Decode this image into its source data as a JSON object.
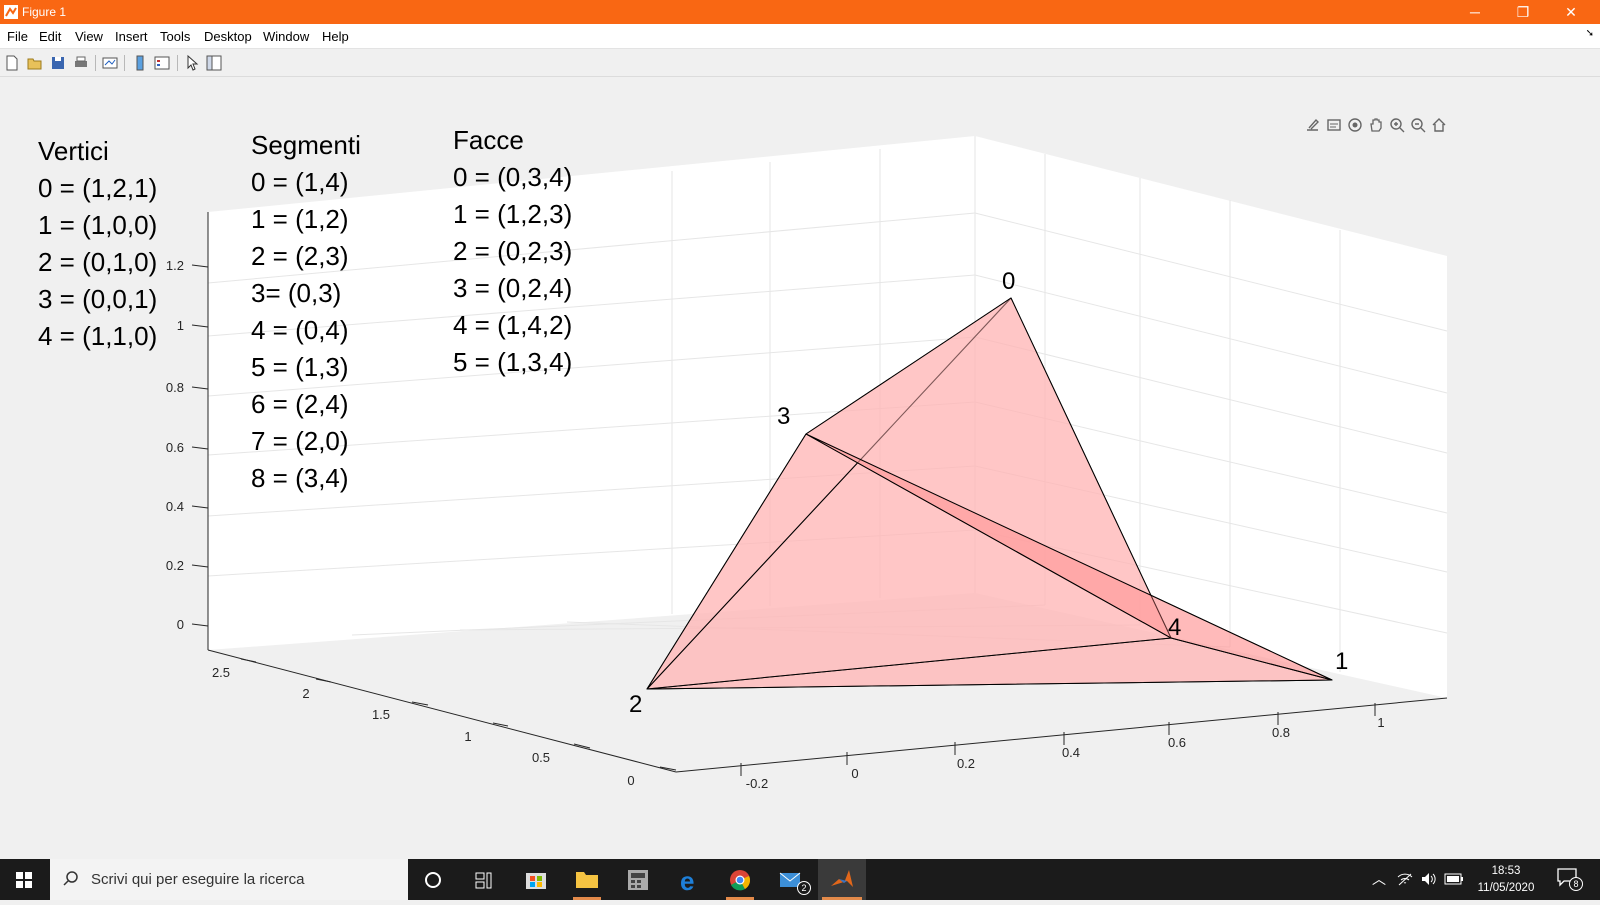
{
  "window": {
    "title": "Figure 1",
    "controls": {
      "minimize": "─",
      "maximize": "❐",
      "close": "✕"
    }
  },
  "menu": [
    "File",
    "Edit",
    "View",
    "Insert",
    "Tools",
    "Desktop",
    "Window",
    "Help"
  ],
  "toolbar_icons": [
    "new-figure-icon",
    "open-file-icon",
    "save-icon",
    "print-icon",
    "link-plot-icon",
    "colorbar-icon",
    "legend-icon",
    "edit-plot-icon",
    "property-inspector-icon"
  ],
  "axes_toolbar_icons": [
    "brush-icon",
    "data-tips-icon",
    "rotate-3d-icon",
    "pan-icon",
    "zoom-in-icon",
    "zoom-out-icon",
    "home-icon"
  ],
  "annotations": {
    "vertici": {
      "title": "Vertici",
      "items": [
        "0 = (1,2,1)",
        "1 = (1,0,0)",
        "2 = (0,1,0)",
        "3 = (0,0,1)",
        "4 = (1,1,0)"
      ]
    },
    "segmenti": {
      "title": "Segmenti",
      "items": [
        "0 = (1,4)",
        "1 = (1,2)",
        "2 = (2,3)",
        "3= (0,3)",
        "4 = (0,4)",
        "5 = (1,3)",
        "6 = (2,4)",
        "7 = (2,0)",
        "8 = (3,4)"
      ]
    },
    "facce": {
      "title": "Facce",
      "items": [
        "0 = (0,3,4)",
        "1 = (1,2,3)",
        "2 = (0,2,3)",
        "3 = (0,2,4)",
        "4 = (1,4,2)",
        "5 = (1,3,4)"
      ]
    }
  },
  "plot": {
    "z_ticks": [
      "0",
      "0.2",
      "0.4",
      "0.6",
      "0.8",
      "1",
      "1.2"
    ],
    "y_ticks": [
      "0",
      "0.5",
      "1",
      "1.5",
      "2",
      "2.5"
    ],
    "x_ticks": [
      "-0.2",
      "0",
      "0.2",
      "0.4",
      "0.6",
      "0.8",
      "1"
    ],
    "vertex_labels": [
      "0",
      "1",
      "2",
      "3",
      "4"
    ],
    "face_color": "#ffb3b3",
    "edge_color": "#000000"
  },
  "taskbar": {
    "search_placeholder": "Scrivi qui per eseguire la ricerca",
    "mail_badge": "2",
    "time": "18:53",
    "date": "11/05/2020",
    "notifications": "8"
  }
}
